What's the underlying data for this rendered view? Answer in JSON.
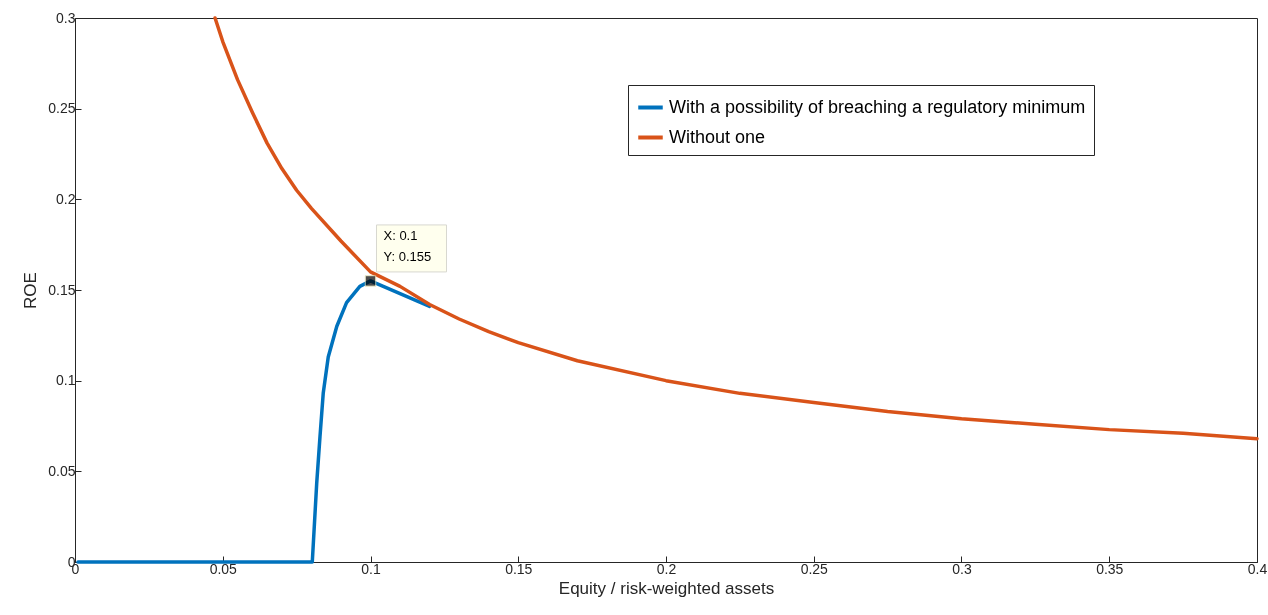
{
  "chart_data": {
    "type": "line",
    "xlabel": "Equity / risk-weighted assets",
    "ylabel": "ROE",
    "xlim": [
      0,
      0.4
    ],
    "ylim": [
      0,
      0.3
    ],
    "xticks": [
      0,
      0.05,
      0.1,
      0.15,
      0.2,
      0.25,
      0.3,
      0.35,
      0.4
    ],
    "yticks": [
      0,
      0.05,
      0.1,
      0.15,
      0.2,
      0.25,
      0.3
    ],
    "legend": "top right",
    "series": [
      {
        "name": "With a possibility of breaching a regulatory minimum",
        "color": "#0072bd",
        "x": [
          0.001,
          0.02,
          0.04,
          0.06,
          0.08,
          0.0803,
          0.0818,
          0.0829,
          0.084,
          0.0857,
          0.0886,
          0.0919,
          0.0964,
          0.1,
          0.11,
          0.12
        ],
        "values": [
          0,
          0,
          0,
          0,
          0,
          0,
          0.0435,
          0.069,
          0.093,
          0.113,
          0.13,
          0.143,
          0.152,
          0.155,
          0.148,
          0.141
        ]
      },
      {
        "name": "Without one",
        "color": "#d95319",
        "x": [
          0.0474,
          0.05,
          0.055,
          0.06,
          0.065,
          0.07,
          0.075,
          0.08,
          0.09,
          0.1,
          0.11,
          0.12,
          0.13,
          0.14,
          0.15,
          0.17,
          0.2,
          0.225,
          0.25,
          0.275,
          0.3,
          0.325,
          0.35,
          0.375,
          0.4
        ],
        "values": [
          0.3,
          0.287,
          0.266,
          0.248,
          0.231,
          0.217,
          0.205,
          0.195,
          0.177,
          0.16,
          0.152,
          0.142,
          0.134,
          0.127,
          0.121,
          0.111,
          0.1,
          0.093,
          0.088,
          0.083,
          0.079,
          0.076,
          0.073,
          0.071,
          0.068
        ]
      }
    ],
    "annotations": [
      {
        "text": "X: 0.1\nY: 0.155",
        "x": 0.1,
        "y": 0.155
      }
    ]
  }
}
